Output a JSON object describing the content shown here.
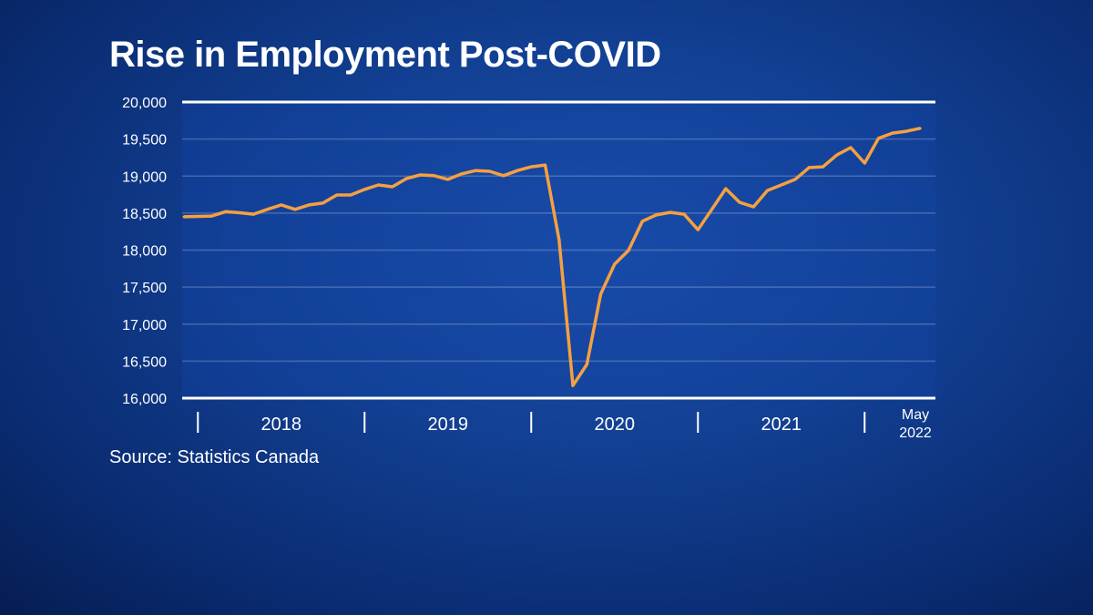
{
  "chart_data": {
    "type": "line",
    "title": "Rise in Employment Post-COVID",
    "source": "Source: Statistics Canada",
    "ylim": [
      16000,
      20000
    ],
    "y_ticks": [
      "20,000",
      "19,500",
      "19,000",
      "18,500",
      "18,000",
      "17,500",
      "17,000",
      "16,500",
      "16,000"
    ],
    "y_tick_values": [
      20000,
      19500,
      19000,
      18500,
      18000,
      17500,
      17000,
      16500,
      16000
    ],
    "x_labels": [
      "2018",
      "2019",
      "2020",
      "2021"
    ],
    "x_end_label": [
      "May",
      "2022"
    ],
    "x_start": "2017-12",
    "x_end": "2022-05",
    "grid": true,
    "line_color": "#f5a040",
    "series": [
      {
        "values": [
          18450,
          18455,
          18460,
          18520,
          18505,
          18485,
          18550,
          18610,
          18550,
          18610,
          18635,
          18745,
          18745,
          18820,
          18880,
          18855,
          18965,
          19015,
          19005,
          18955,
          19030,
          19075,
          19065,
          19005,
          19075,
          19125,
          19150,
          18140,
          16170,
          16455,
          17405,
          17810,
          17995,
          18390,
          18475,
          18510,
          18485,
          18275,
          18550,
          18830,
          18645,
          18585,
          18805,
          18880,
          18955,
          19115,
          19125,
          19285,
          19385,
          19175,
          19510,
          19580,
          19605,
          19645
        ]
      }
    ]
  }
}
